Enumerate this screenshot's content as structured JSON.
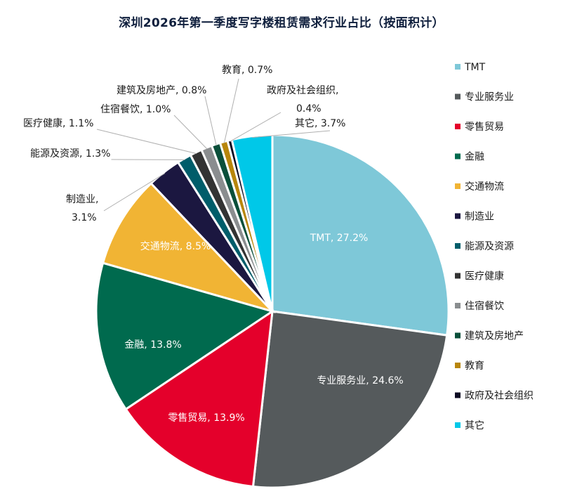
{
  "chart_data": {
    "type": "pie",
    "title": "深圳2026年第一季度写字楼租赁需求行业占比（按面积计）",
    "slices": [
      {
        "name": "TMT",
        "value": 27.2,
        "label": "TMT, 27.2%",
        "color": "#7ec8d8"
      },
      {
        "name": "专业服务业",
        "value": 24.6,
        "label": "专业服务业, 24.6%",
        "color": "#555a5c"
      },
      {
        "name": "零售贸易",
        "value": 13.9,
        "label": "零售贸易, 13.9%",
        "color": "#e4002b"
      },
      {
        "name": "金融",
        "value": 13.8,
        "label": "金融, 13.8%",
        "color": "#006a4e"
      },
      {
        "name": "交通物流",
        "value": 8.5,
        "label": "交通物流, 8.5%",
        "color": "#f1b434"
      },
      {
        "name": "制造业",
        "value": 3.1,
        "label": "制造业,|3.1%",
        "color": "#1b1740"
      },
      {
        "name": "能源及资源",
        "value": 1.3,
        "label": "能源及资源, 1.3%",
        "color": "#005d6a"
      },
      {
        "name": "医疗健康",
        "value": 1.1,
        "label": "医疗健康, 1.1%",
        "color": "#333333"
      },
      {
        "name": "住宿餐饮",
        "value": 1.0,
        "label": "住宿餐饮, 1.0%",
        "color": "#8a8d8f"
      },
      {
        "name": "建筑及房地产",
        "value": 0.8,
        "label": "建筑及房地产, 0.8%",
        "color": "#0a4f3a"
      },
      {
        "name": "教育",
        "value": 0.7,
        "label": "教育, 0.7%",
        "color": "#b8860b"
      },
      {
        "name": "政府及社会组织",
        "value": 0.4,
        "label": "政府及社会组织,|0.4%",
        "color": "#0c0a22"
      },
      {
        "name": "其它",
        "value": 3.7,
        "label": "其它, 3.7%",
        "color": "#00c8e8"
      }
    ],
    "legend": {
      "placement": "right",
      "entries": [
        "TMT",
        "专业服务业",
        "零售贸易",
        "金融",
        "交通物流",
        "制造业",
        "能源及资源",
        "医疗健康",
        "住宿餐饮",
        "建筑及房地产",
        "教育",
        "政府及社会组织",
        "其它"
      ]
    }
  }
}
